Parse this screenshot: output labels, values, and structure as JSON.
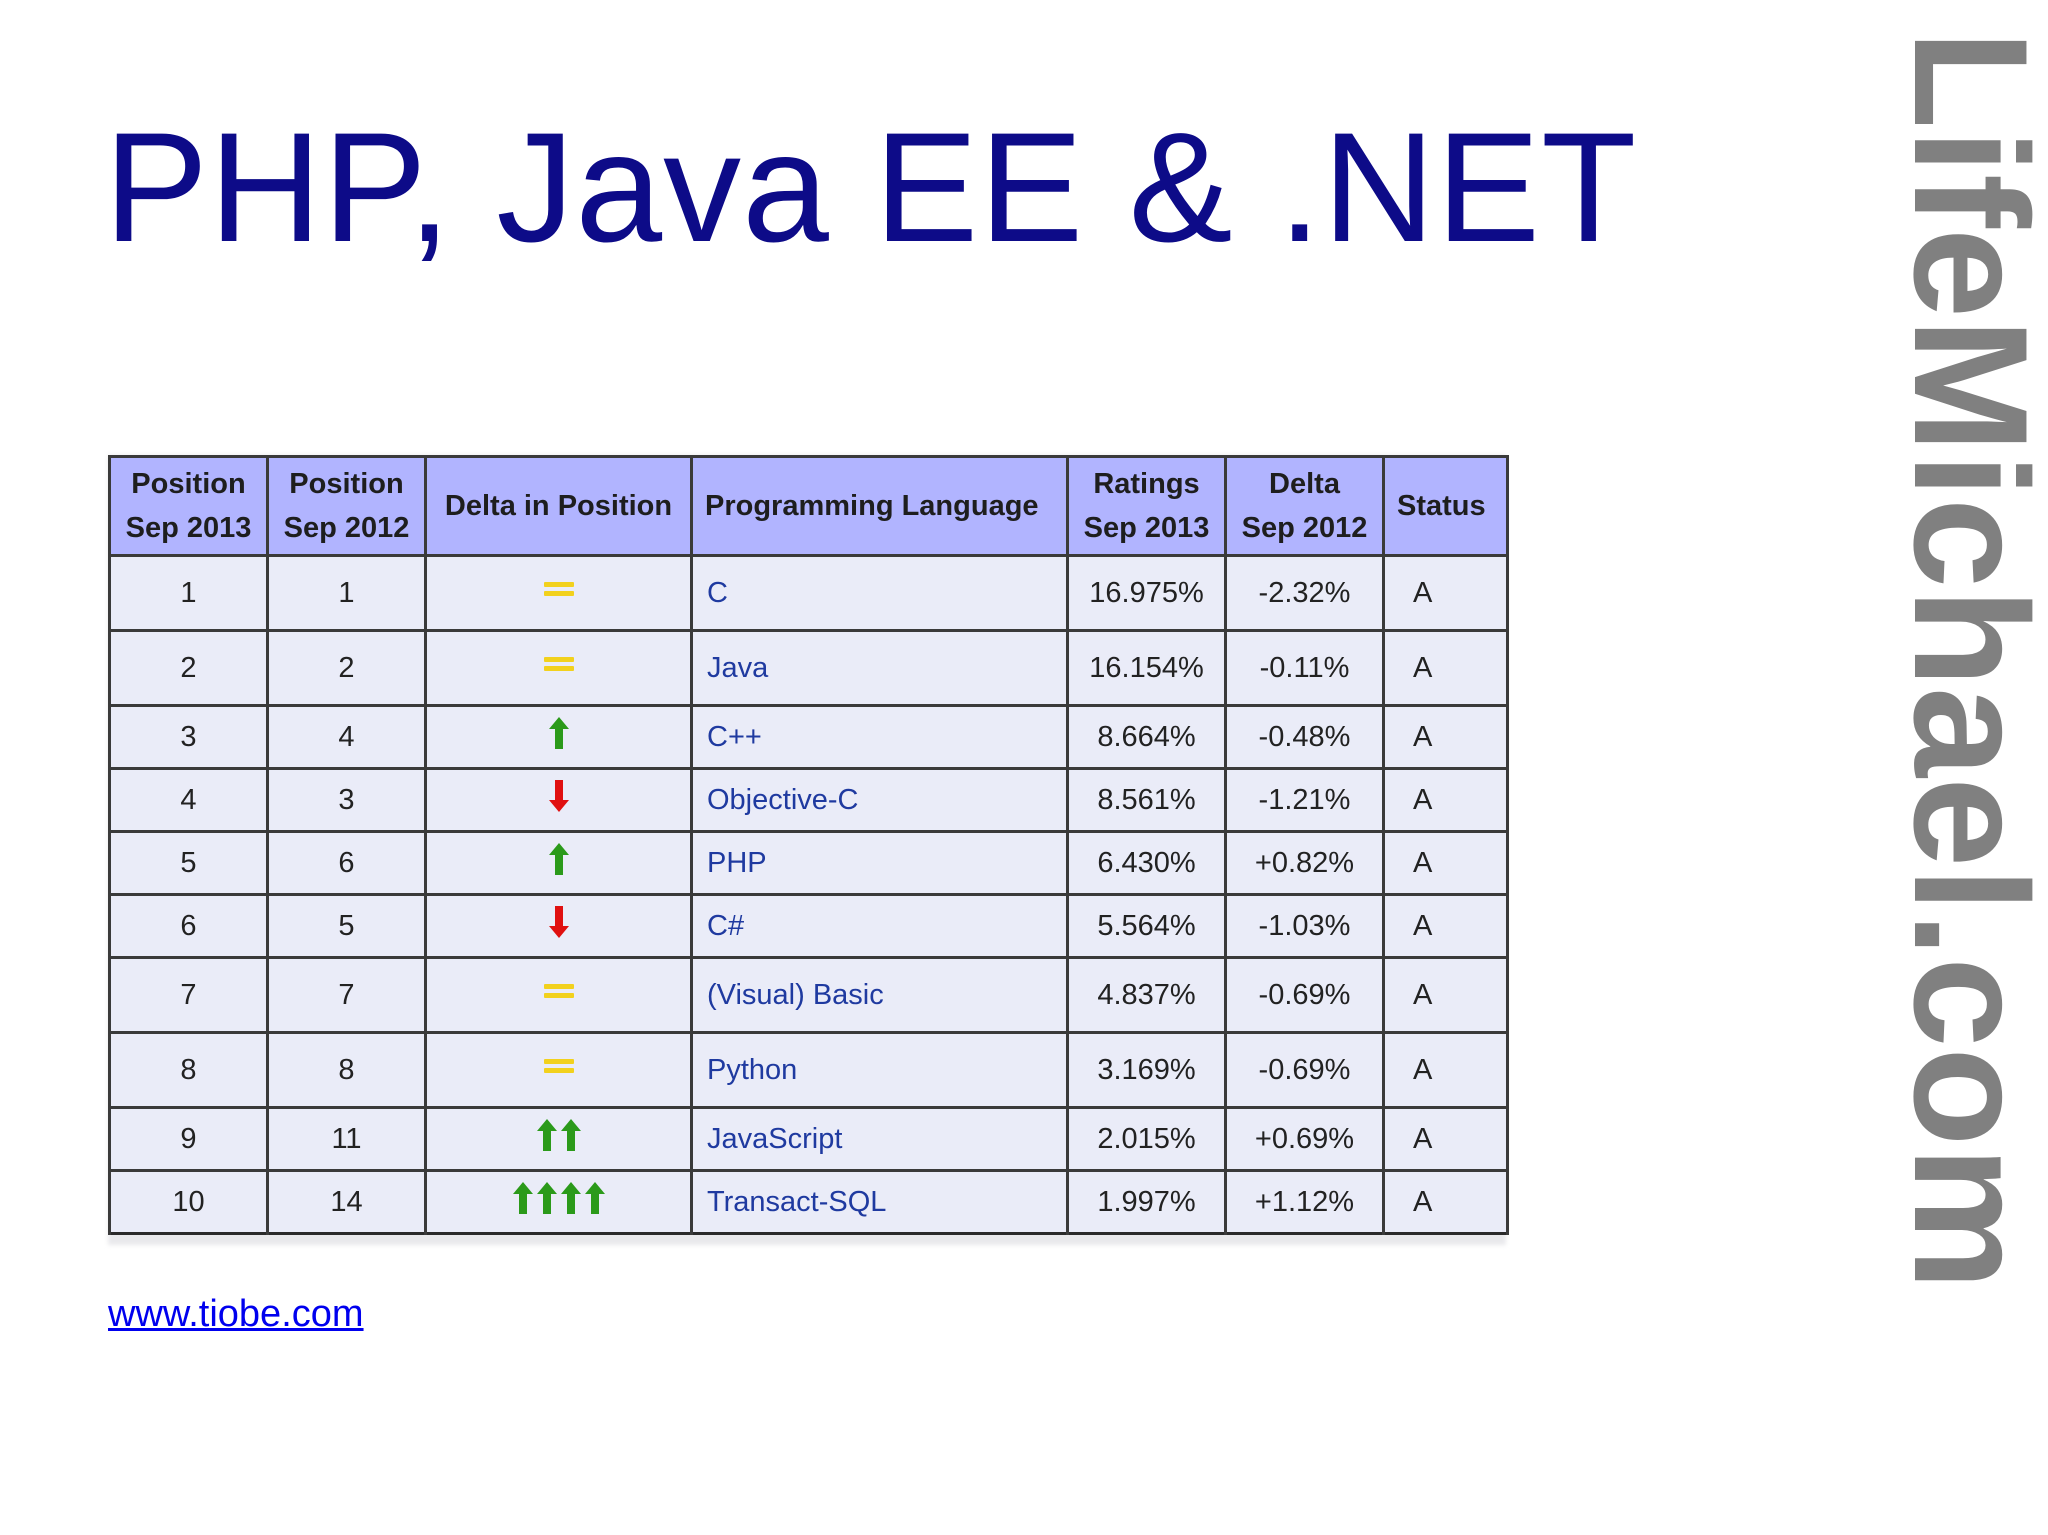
{
  "slide": {
    "title": "PHP, Java EE & .NET",
    "source_link": "www.tiobe.com",
    "watermark": "LifeMichael.com"
  },
  "table": {
    "headers": {
      "position_2013": [
        "Position",
        "Sep 2013"
      ],
      "position_2012": [
        "Position",
        "Sep 2012"
      ],
      "delta_position": "Delta in Position",
      "language": "Programming Language",
      "ratings": [
        "Ratings",
        "Sep 2013"
      ],
      "delta": [
        "Delta",
        "Sep 2012"
      ],
      "status": "Status"
    },
    "rows": [
      {
        "pos2013": "1",
        "pos2012": "1",
        "delta_icon": "equal",
        "delta_count": 1,
        "language": "C",
        "rating": "16.975%",
        "delta": "-2.32%",
        "status": "A"
      },
      {
        "pos2013": "2",
        "pos2012": "2",
        "delta_icon": "equal",
        "delta_count": 1,
        "language": "Java",
        "rating": "16.154%",
        "delta": "-0.11%",
        "status": "A"
      },
      {
        "pos2013": "3",
        "pos2012": "4",
        "delta_icon": "up",
        "delta_count": 1,
        "language": "C++",
        "rating": "8.664%",
        "delta": "-0.48%",
        "status": "A"
      },
      {
        "pos2013": "4",
        "pos2012": "3",
        "delta_icon": "down",
        "delta_count": 1,
        "language": "Objective-C",
        "rating": "8.561%",
        "delta": "-1.21%",
        "status": "A"
      },
      {
        "pos2013": "5",
        "pos2012": "6",
        "delta_icon": "up",
        "delta_count": 1,
        "language": "PHP",
        "rating": "6.430%",
        "delta": "+0.82%",
        "status": "A"
      },
      {
        "pos2013": "6",
        "pos2012": "5",
        "delta_icon": "down",
        "delta_count": 1,
        "language": "C#",
        "rating": "5.564%",
        "delta": "-1.03%",
        "status": "A"
      },
      {
        "pos2013": "7",
        "pos2012": "7",
        "delta_icon": "equal",
        "delta_count": 1,
        "language": "(Visual) Basic",
        "rating": "4.837%",
        "delta": "-0.69%",
        "status": "A"
      },
      {
        "pos2013": "8",
        "pos2012": "8",
        "delta_icon": "equal",
        "delta_count": 1,
        "language": "Python",
        "rating": "3.169%",
        "delta": "-0.69%",
        "status": "A"
      },
      {
        "pos2013": "9",
        "pos2012": "11",
        "delta_icon": "up",
        "delta_count": 2,
        "language": "JavaScript",
        "rating": "2.015%",
        "delta": "+0.69%",
        "status": "A"
      },
      {
        "pos2013": "10",
        "pos2012": "14",
        "delta_icon": "up",
        "delta_count": 4,
        "language": "Transact-SQL",
        "rating": "1.997%",
        "delta": "+1.12%",
        "status": "A"
      }
    ]
  },
  "colors": {
    "title": "#0d0b88",
    "header_bg": "#b1b4ff",
    "row_bg": "#eaecf8",
    "language_text": "#1f3aa0",
    "equal_icon": "#f2d11d",
    "up_icon": "#2b9a1a",
    "down_icon": "#e01010",
    "watermark": "#808080",
    "link": "#0000ee"
  }
}
